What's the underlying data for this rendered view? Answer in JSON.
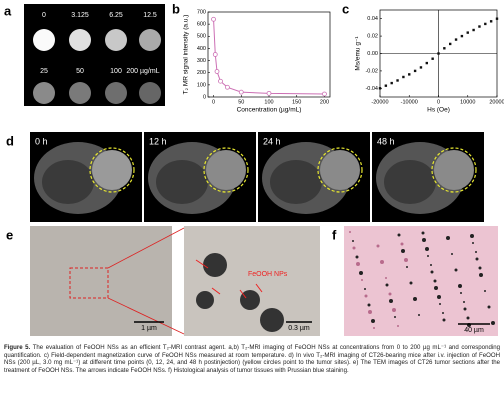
{
  "panel_labels": [
    "a",
    "b",
    "c",
    "d",
    "e",
    "f"
  ],
  "a": {
    "concentrations": [
      "0",
      "3.125",
      "6.25",
      "12.5",
      "25",
      "50",
      "100",
      "200 µg/mL"
    ]
  },
  "b": {
    "chart": {
      "type": "scatter-line",
      "xlabel": "Concentration (µg/mL)",
      "ylabel": "T₂ MR signal intensity (a.u.)",
      "x": [
        0,
        3.125,
        6.25,
        12.5,
        25,
        50,
        100,
        200
      ],
      "values": [
        640,
        350,
        210,
        130,
        80,
        40,
        30,
        25
      ],
      "xlim": [
        -10,
        210
      ],
      "ylim": [
        0,
        700
      ],
      "xticks": [
        0,
        50,
        100,
        150,
        200
      ],
      "yticks": [
        0,
        100,
        200,
        300,
        400,
        500,
        600,
        700
      ],
      "color": "#cc6fb4"
    }
  },
  "c": {
    "chart": {
      "type": "scatter",
      "xlabel": "Hs (Oe)",
      "ylabel": "Ms/emu g⁻¹",
      "x": [
        -20000,
        -18000,
        -16000,
        -14000,
        -12000,
        -10000,
        -8000,
        -6000,
        -4000,
        -2000,
        0,
        2000,
        4000,
        6000,
        8000,
        10000,
        12000,
        14000,
        16000,
        18000,
        20000
      ],
      "values": [
        -0.04,
        -0.037,
        -0.034,
        -0.031,
        -0.027,
        -0.024,
        -0.02,
        -0.016,
        -0.011,
        -0.006,
        0,
        0.006,
        0.011,
        0.016,
        0.02,
        0.024,
        0.027,
        0.031,
        0.034,
        0.037,
        0.04
      ],
      "xlim": [
        -20000,
        20000
      ],
      "ylim": [
        -0.05,
        0.05
      ],
      "xticks": [
        -20000,
        -10000,
        0,
        10000,
        20000
      ],
      "yticks": [
        -0.04,
        -0.02,
        {
          "value": 0,
          "label": "0.00"
        },
        0.02,
        0.04
      ],
      "color": "#111111"
    }
  },
  "d": {
    "timepoints": [
      "0 h",
      "12 h",
      "24 h",
      "48 h"
    ]
  },
  "e": {
    "scale_bars": [
      "1 µm",
      "0.3 µm"
    ],
    "annotation": "FeOOH NPs"
  },
  "f": {
    "scale_bar": "40 µm"
  },
  "caption": {
    "lead": "Figure 5.",
    "text": "The evaluation of FeOOH NSs as an efficient T₂-MRI contrast agent. a,b) T₂-MRI imaging of FeOOH NSs at concentrations from 0 to 200 µg mL⁻¹ and corresponding quantification. c) Field-dependent magnetization curve of FeOOH NSs measured at room temperature. d) In vivo T₂-MRI imaging of CT26-bearing mice after i.v. injection of FeOOH NSs (200 µL, 3.0 mg mL⁻¹) at different time points (0, 12, 24, and 48 h postinjection) (yellow circles point to the tumor sites). e) The TEM images of CT26 tumor sections after the treatment of FeOOH NSs. The arrows indicate FeOOH NSs. f) Histological analysis of tumor tissues with Prussian blue staining."
  }
}
